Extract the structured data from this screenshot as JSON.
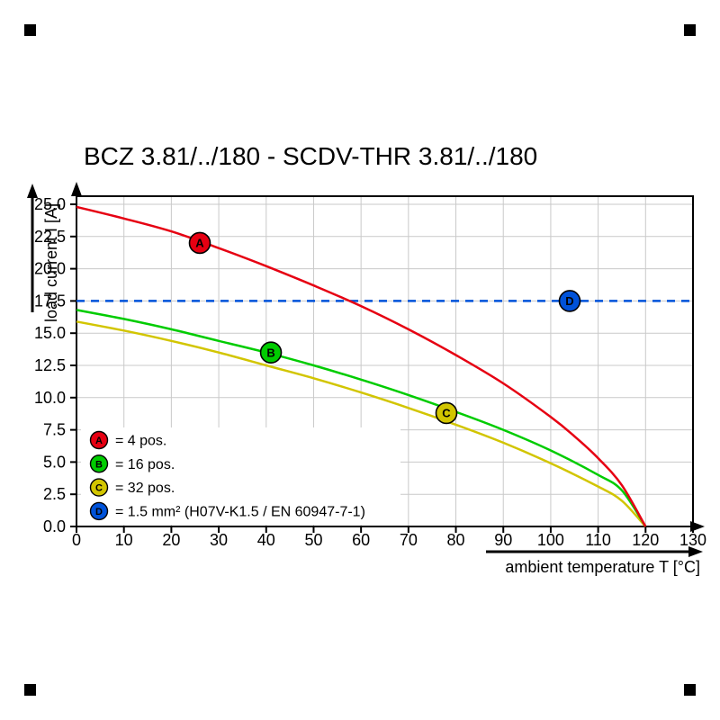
{
  "title": "BCZ 3.81/../180 - SCDV-THR 3.81/../180",
  "chart_data": {
    "type": "line",
    "title": "BCZ 3.81/../180 - SCDV-THR 3.81/../180",
    "xlabel": "ambient temperature T [°C]",
    "ylabel": "load current I [A]",
    "xlim": [
      0,
      130
    ],
    "ylim": [
      0,
      25
    ],
    "x_ticks": [
      0,
      10,
      20,
      30,
      40,
      50,
      60,
      70,
      80,
      90,
      100,
      110,
      120,
      130
    ],
    "x_tick_labels": [
      "0",
      "10",
      "20",
      "30",
      "40",
      "50",
      "60",
      "70",
      "80",
      "90",
      "100",
      "110",
      "120",
      "130"
    ],
    "y_ticks": [
      0,
      2.5,
      5,
      7.5,
      10,
      12.5,
      15,
      17.5,
      20,
      22.5,
      25
    ],
    "y_tick_labels": [
      "0.0",
      "2.5",
      "5.0",
      "7.5",
      "10.0",
      "12.5",
      "15.0",
      "17.5",
      "20.0",
      "22.5",
      "25.0"
    ],
    "grid": true,
    "legend_position": "bottom-left",
    "series": [
      {
        "name": "A",
        "legend_label": "= 4 pos.",
        "color": "#e60012",
        "style": "solid",
        "marker": {
          "letter": "A",
          "x": 26,
          "y": 22.0
        },
        "points": [
          [
            0,
            24.8
          ],
          [
            10,
            23.9
          ],
          [
            20,
            22.9
          ],
          [
            30,
            21.6
          ],
          [
            40,
            20.2
          ],
          [
            50,
            18.7
          ],
          [
            60,
            17.1
          ],
          [
            70,
            15.3
          ],
          [
            80,
            13.3
          ],
          [
            90,
            11.1
          ],
          [
            100,
            8.5
          ],
          [
            105,
            7.0
          ],
          [
            110,
            5.3
          ],
          [
            115,
            3.2
          ],
          [
            120,
            0
          ]
        ]
      },
      {
        "name": "B",
        "legend_label": "= 16 pos.",
        "color": "#00cc00",
        "style": "solid",
        "marker": {
          "letter": "B",
          "x": 41,
          "y": 13.5
        },
        "points": [
          [
            0,
            16.8
          ],
          [
            10,
            16.1
          ],
          [
            20,
            15.3
          ],
          [
            30,
            14.4
          ],
          [
            40,
            13.5
          ],
          [
            50,
            12.5
          ],
          [
            60,
            11.4
          ],
          [
            70,
            10.2
          ],
          [
            80,
            8.9
          ],
          [
            90,
            7.5
          ],
          [
            100,
            5.9
          ],
          [
            110,
            4.0
          ],
          [
            115,
            2.8
          ],
          [
            120,
            0
          ]
        ]
      },
      {
        "name": "C",
        "legend_label": "= 32 pos.",
        "color": "#d2c500",
        "style": "solid",
        "marker": {
          "letter": "C",
          "x": 78,
          "y": 8.8
        },
        "points": [
          [
            0,
            15.9
          ],
          [
            10,
            15.2
          ],
          [
            20,
            14.4
          ],
          [
            30,
            13.5
          ],
          [
            40,
            12.5
          ],
          [
            50,
            11.5
          ],
          [
            60,
            10.4
          ],
          [
            70,
            9.2
          ],
          [
            80,
            7.9
          ],
          [
            90,
            6.5
          ],
          [
            100,
            4.9
          ],
          [
            110,
            3.1
          ],
          [
            115,
            2.0
          ],
          [
            120,
            0
          ]
        ]
      },
      {
        "name": "D",
        "legend_label": "= 1.5 mm² (H07V-K1.5 / EN 60947-7-1)",
        "color": "#0052d9",
        "style": "dashed",
        "marker": {
          "letter": "D",
          "x": 104,
          "y": 17.5
        },
        "points": [
          [
            0,
            17.5
          ],
          [
            130,
            17.5
          ]
        ]
      }
    ]
  }
}
